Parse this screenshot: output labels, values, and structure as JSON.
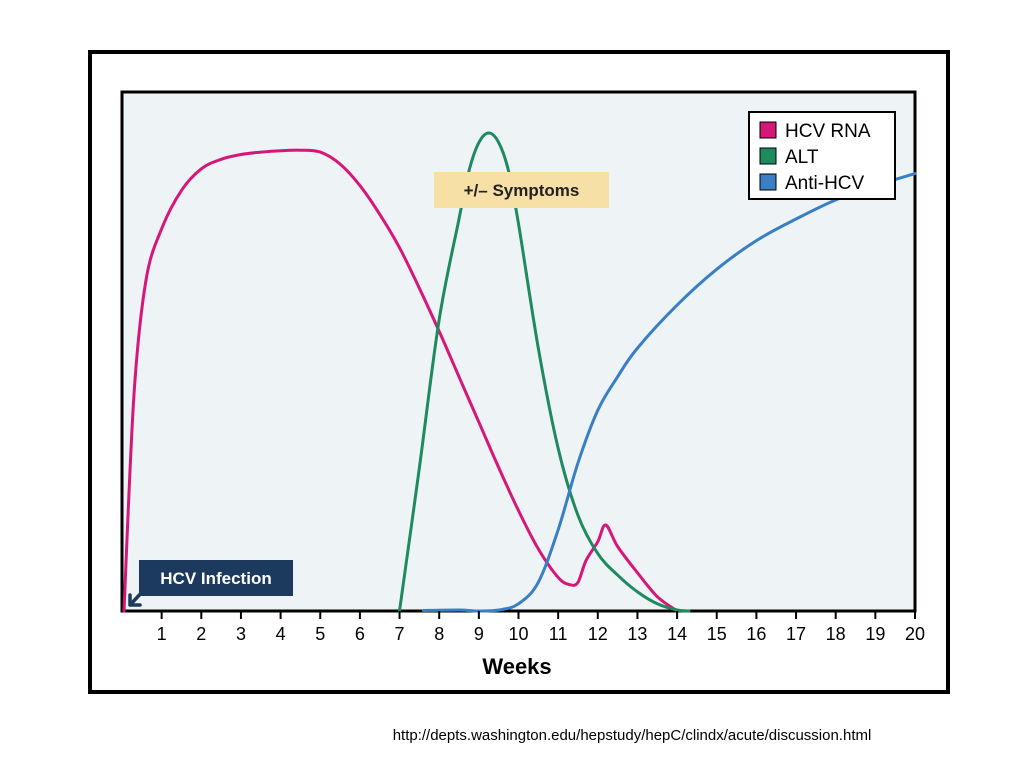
{
  "chart_data": {
    "type": "line",
    "xlabel": "Weeks",
    "ylabel": "",
    "xlim": [
      0,
      20
    ],
    "ylim": [
      0,
      100
    ],
    "xticks": [
      1,
      2,
      3,
      4,
      5,
      6,
      7,
      8,
      9,
      10,
      11,
      12,
      13,
      14,
      15,
      16,
      17,
      18,
      19,
      20
    ],
    "legend_position": "top-right",
    "annotations": {
      "symptoms": "+/– Symptoms",
      "infection": "HCV Infection"
    },
    "series": [
      {
        "name": "HCV RNA",
        "color": "#d6177a",
        "x": [
          0.05,
          0.3,
          0.6,
          1.0,
          1.5,
          2.0,
          2.5,
          3.0,
          3.5,
          4.0,
          4.5,
          5.0,
          5.5,
          6.0,
          6.5,
          7.0,
          7.5,
          8.0,
          8.5,
          9.0,
          9.5,
          10.0,
          10.5,
          11.0,
          11.3,
          11.5,
          11.7,
          12.0,
          12.2,
          12.5,
          13.0,
          13.5,
          14.0
        ],
        "y": [
          0,
          45,
          69,
          80,
          88,
          92.5,
          94.5,
          95.5,
          96,
          96.3,
          96.4,
          96,
          93.5,
          89,
          83,
          76,
          67.5,
          58.5,
          49,
          39.5,
          30,
          21,
          13,
          7,
          5.5,
          6,
          10.5,
          14.5,
          18,
          13.5,
          8,
          3,
          0
        ]
      },
      {
        "name": "ALT",
        "color": "#1f8a5e",
        "x": [
          7.0,
          7.5,
          8.0,
          8.5,
          8.75,
          9.0,
          9.25,
          9.5,
          9.75,
          10.0,
          10.5,
          11.0,
          11.5,
          12.0,
          12.5,
          13.0,
          13.5,
          14.0,
          14.3
        ],
        "y": [
          0,
          30,
          61,
          82,
          92,
          98,
          100,
          98,
          92,
          81,
          55,
          34,
          20,
          12,
          7.5,
          4,
          1.5,
          0.2,
          0
        ]
      },
      {
        "name": "Anti-HCV",
        "color": "#3a7ec6",
        "x": [
          7.6,
          8.5,
          9.0,
          9.5,
          10.0,
          10.5,
          11.0,
          11.5,
          12.0,
          12.5,
          13.0,
          14.0,
          15.0,
          16.0,
          17.0,
          18.0,
          19.0,
          20.0
        ],
        "y": [
          0.1,
          0.2,
          0,
          0.2,
          1.5,
          6,
          17,
          31,
          42,
          49,
          55,
          64,
          71.5,
          77.5,
          82,
          86,
          89,
          91.5
        ]
      }
    ]
  },
  "source_url": "http://depts.washington.edu/hepstudy/hepC/clindx/acute/discussion.html"
}
